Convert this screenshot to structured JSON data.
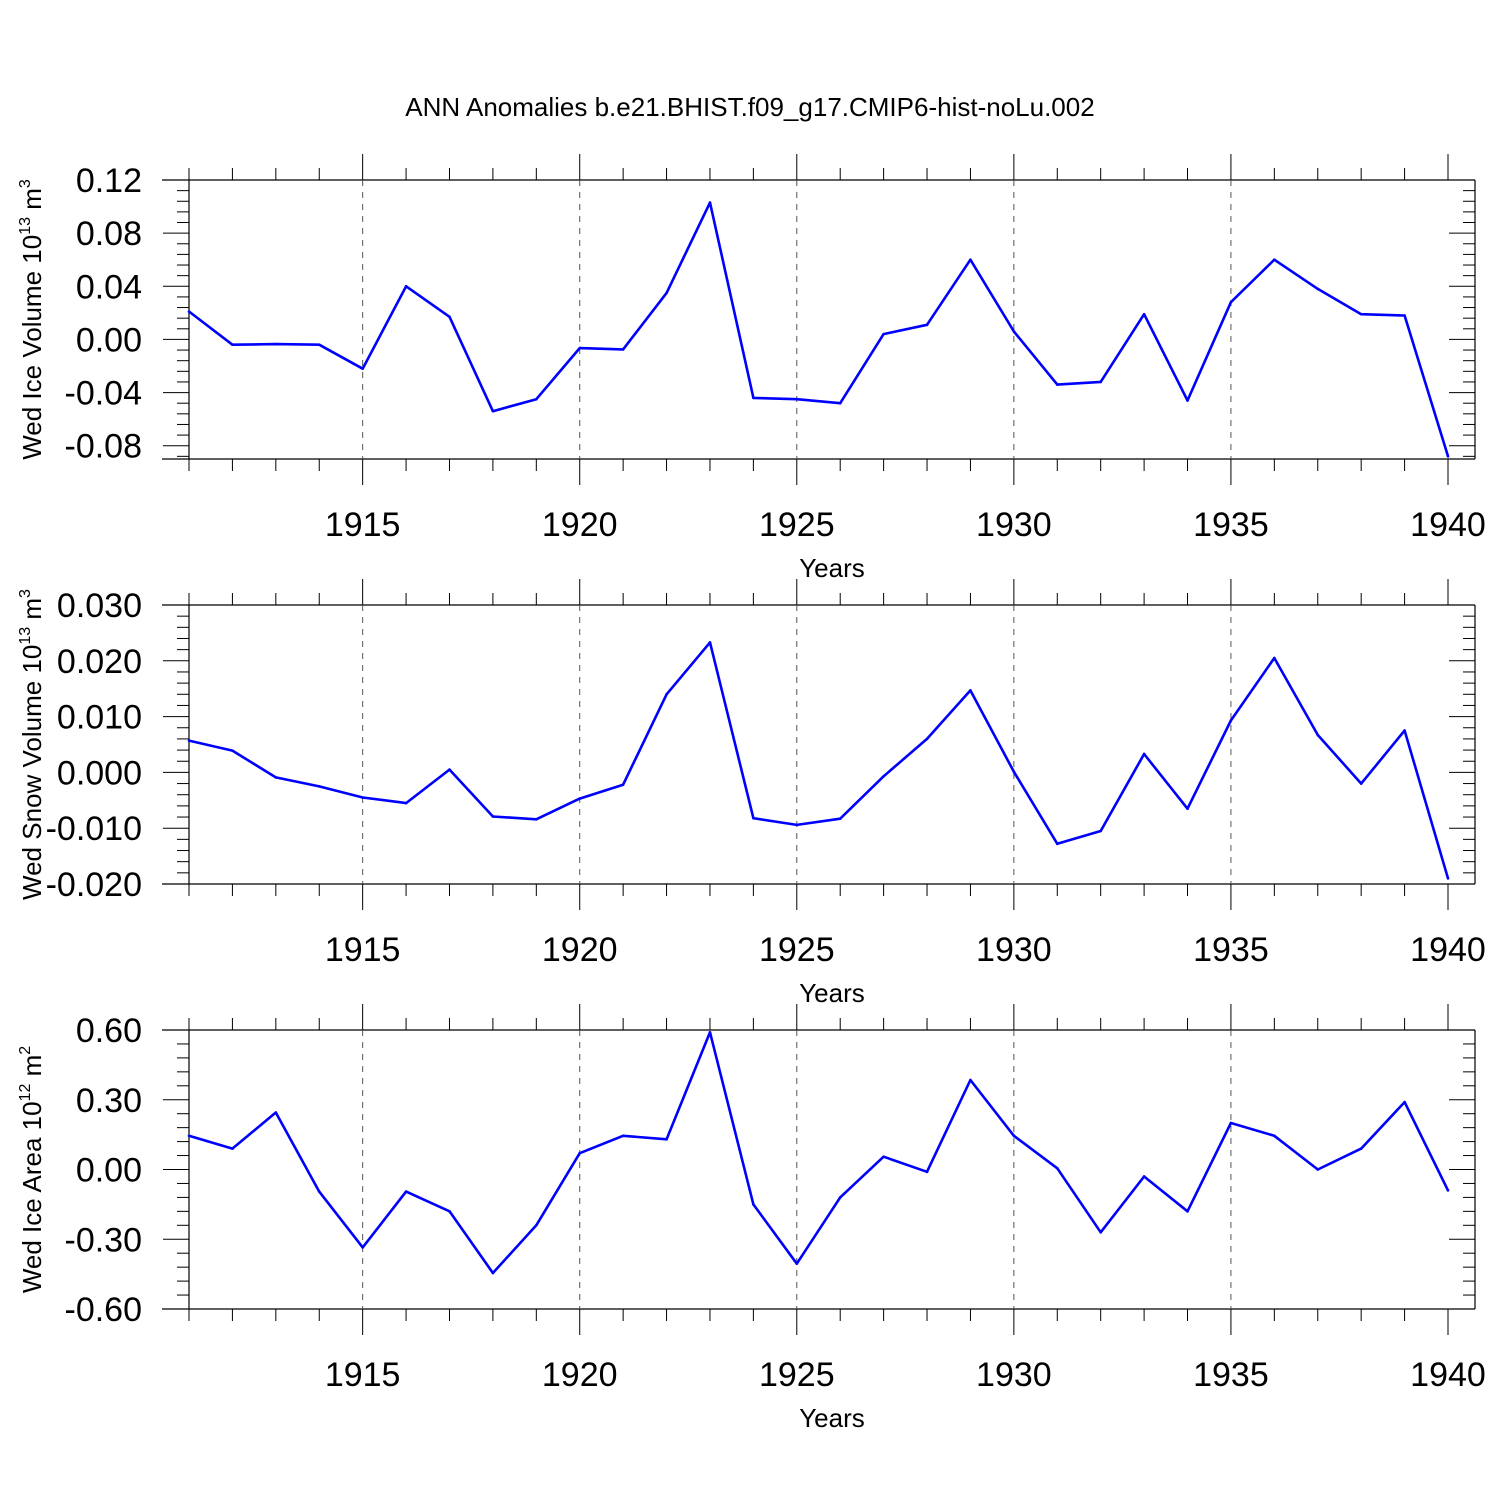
{
  "title": "ANN Anomalies b.e21.BHIST.f09_g17.CMIP6-hist-noLu.002",
  "chart_data": [
    {
      "type": "line",
      "ylabel": {
        "main": "Wed Ice Volume 10",
        "exponent": "13",
        "unit": " m",
        "unit_exponent": "3"
      },
      "xlabel": "Years",
      "xlim": [
        1911,
        1940
      ],
      "ylim": [
        -0.09,
        0.12
      ],
      "x_ticks": [
        1915,
        1920,
        1925,
        1930,
        1935,
        1940
      ],
      "x_tick_labels": [
        "1915",
        "1920",
        "1925",
        "1930",
        "1935",
        "1940"
      ],
      "y_ticks": [
        -0.08,
        -0.04,
        0.0,
        0.04,
        0.08,
        0.12
      ],
      "y_tick_labels": [
        "-0.08",
        "-0.04",
        "0.00",
        "0.04",
        "0.08",
        "0.12"
      ],
      "color": "#0000ff",
      "grid": "dashed vertical at major x ticks",
      "x": [
        1911,
        1912,
        1913,
        1914,
        1915,
        1916,
        1917,
        1918,
        1919,
        1920,
        1921,
        1922,
        1923,
        1924,
        1925,
        1926,
        1927,
        1928,
        1929,
        1930,
        1931,
        1932,
        1933,
        1934,
        1935,
        1936,
        1937,
        1938,
        1939,
        1940
      ],
      "values": [
        0.021,
        -0.004,
        -0.0035,
        -0.004,
        -0.022,
        0.04,
        0.017,
        -0.054,
        -0.045,
        -0.0065,
        -0.0075,
        0.035,
        0.103,
        -0.044,
        -0.045,
        -0.048,
        0.004,
        0.011,
        0.06,
        0.006,
        -0.034,
        -0.032,
        0.019,
        -0.046,
        0.028,
        0.06,
        0.038,
        0.019,
        0.018,
        -0.088
      ]
    },
    {
      "type": "line",
      "ylabel": {
        "main": "Wed Snow Volume 10",
        "exponent": "13",
        "unit": " m",
        "unit_exponent": "3"
      },
      "xlabel": "Years",
      "xlim": [
        1911,
        1940
      ],
      "ylim": [
        -0.02,
        0.03
      ],
      "x_ticks": [
        1915,
        1920,
        1925,
        1930,
        1935,
        1940
      ],
      "x_tick_labels": [
        "1915",
        "1920",
        "1925",
        "1930",
        "1935",
        "1940"
      ],
      "y_ticks": [
        -0.02,
        -0.01,
        0.0,
        0.01,
        0.02,
        0.03
      ],
      "y_tick_labels": [
        "-0.020",
        "-0.010",
        "0.000",
        "0.010",
        "0.020",
        "0.030"
      ],
      "color": "#0000ff",
      "grid": "dashed vertical at major x ticks",
      "x": [
        1911,
        1912,
        1913,
        1914,
        1915,
        1916,
        1917,
        1918,
        1919,
        1920,
        1921,
        1922,
        1923,
        1924,
        1925,
        1926,
        1927,
        1928,
        1929,
        1930,
        1931,
        1932,
        1933,
        1934,
        1935,
        1936,
        1937,
        1938,
        1939,
        1940
      ],
      "values": [
        0.0057,
        0.0039,
        -0.0009,
        -0.0025,
        -0.0045,
        -0.0055,
        0.0005,
        -0.0079,
        -0.0084,
        -0.0047,
        -0.0022,
        0.014,
        0.0233,
        -0.0082,
        -0.0094,
        -0.0083,
        -0.0007,
        0.006,
        0.0147,
        0.0001,
        -0.0128,
        -0.0105,
        0.0033,
        -0.0065,
        0.0093,
        0.0205,
        0.0067,
        -0.002,
        0.0075,
        -0.019
      ]
    },
    {
      "type": "line",
      "ylabel": {
        "main": "Wed Ice Area 10",
        "exponent": "12",
        "unit": " m",
        "unit_exponent": "2"
      },
      "xlabel": "Years",
      "xlim": [
        1911,
        1940
      ],
      "ylim": [
        -0.6,
        0.6
      ],
      "x_ticks": [
        1915,
        1920,
        1925,
        1930,
        1935,
        1940
      ],
      "x_tick_labels": [
        "1915",
        "1920",
        "1925",
        "1930",
        "1935",
        "1940"
      ],
      "y_ticks": [
        -0.6,
        -0.3,
        0.0,
        0.3,
        0.6
      ],
      "y_tick_labels": [
        "-0.60",
        "-0.30",
        "0.00",
        "0.30",
        "0.60"
      ],
      "color": "#0000ff",
      "grid": "dashed vertical at major x ticks",
      "x": [
        1911,
        1912,
        1913,
        1914,
        1915,
        1916,
        1917,
        1918,
        1919,
        1920,
        1921,
        1922,
        1923,
        1924,
        1925,
        1926,
        1927,
        1928,
        1929,
        1930,
        1931,
        1932,
        1933,
        1934,
        1935,
        1936,
        1937,
        1938,
        1939,
        1940
      ],
      "values": [
        0.145,
        0.09,
        0.245,
        -0.095,
        -0.335,
        -0.095,
        -0.18,
        -0.445,
        -0.24,
        0.07,
        0.145,
        0.13,
        0.59,
        -0.15,
        -0.405,
        -0.12,
        0.055,
        -0.01,
        0.385,
        0.145,
        0.005,
        -0.27,
        -0.03,
        -0.18,
        0.2,
        0.145,
        0.0,
        0.09,
        0.29,
        -0.09
      ]
    }
  ]
}
